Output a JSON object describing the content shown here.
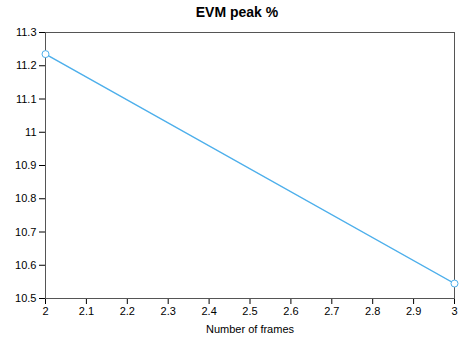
{
  "chart_data": {
    "type": "line",
    "title": "EVM peak %",
    "xlabel": "Number of frames",
    "x": [
      2,
      3
    ],
    "values": [
      11.235,
      10.545
    ],
    "color": "#4DAFEB",
    "marker": "circle",
    "xlim": [
      2.0,
      3.0
    ],
    "ylim": [
      10.5,
      11.3
    ],
    "xticks": [
      2.0,
      2.1,
      2.2,
      2.3,
      2.4,
      2.5,
      2.6,
      2.7,
      2.8,
      2.9,
      3.0
    ],
    "yticks": [
      10.5,
      10.6,
      10.7,
      10.8,
      10.9,
      11.0,
      11.1,
      11.2,
      11.3
    ],
    "grid": false
  }
}
